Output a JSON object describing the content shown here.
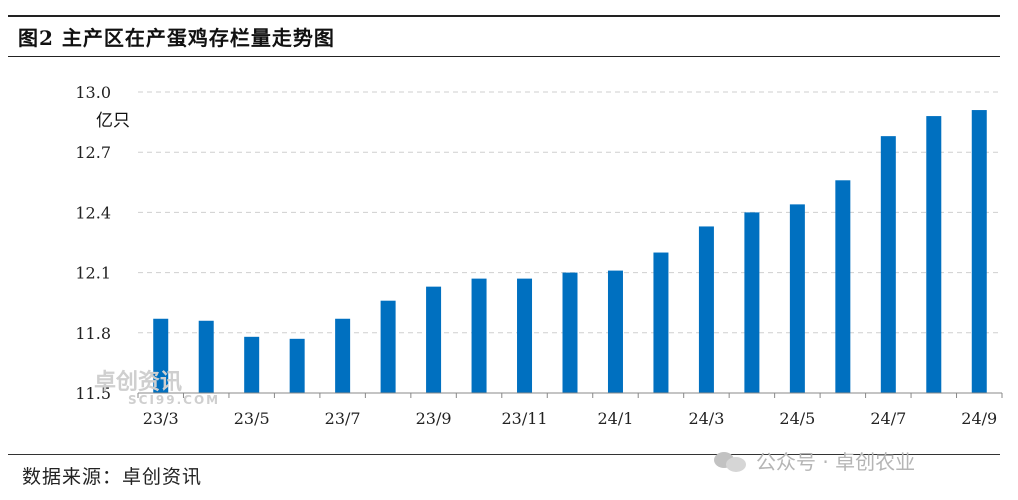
{
  "title": "图2 主产区在产蛋鸡存栏量走势图",
  "source": "数据来源：卓创资讯",
  "watermark": "公众号 · 卓创农业",
  "logo_watermark": {
    "main": "卓创资讯",
    "sub": "SCI99.COM"
  },
  "colors": {
    "bar": "#0070C0",
    "grid": "#cfcfcf",
    "axis": "#888888"
  },
  "chart_data": {
    "type": "bar",
    "unit_label": "亿只",
    "categories": [
      "23/3",
      "23/4",
      "23/5",
      "23/6",
      "23/7",
      "23/8",
      "23/9",
      "23/10",
      "23/11",
      "23/12",
      "24/1",
      "24/2",
      "24/3",
      "24/4",
      "24/5",
      "24/6",
      "24/7",
      "24/8",
      "24/9"
    ],
    "x_tick_labels": [
      "23/3",
      "23/5",
      "23/7",
      "23/9",
      "23/11",
      "24/1",
      "24/3",
      "24/5",
      "24/7",
      "24/9"
    ],
    "values": [
      11.87,
      11.86,
      11.78,
      11.77,
      11.87,
      11.96,
      12.03,
      12.07,
      12.07,
      12.1,
      12.11,
      12.2,
      12.33,
      12.4,
      12.44,
      12.56,
      12.78,
      12.88,
      12.91
    ],
    "ylim": [
      11.5,
      13.0
    ],
    "y_ticks": [
      "11.5",
      "11.8",
      "12.1",
      "12.4",
      "12.7",
      "13.0"
    ],
    "grid": true,
    "legend": "none"
  }
}
